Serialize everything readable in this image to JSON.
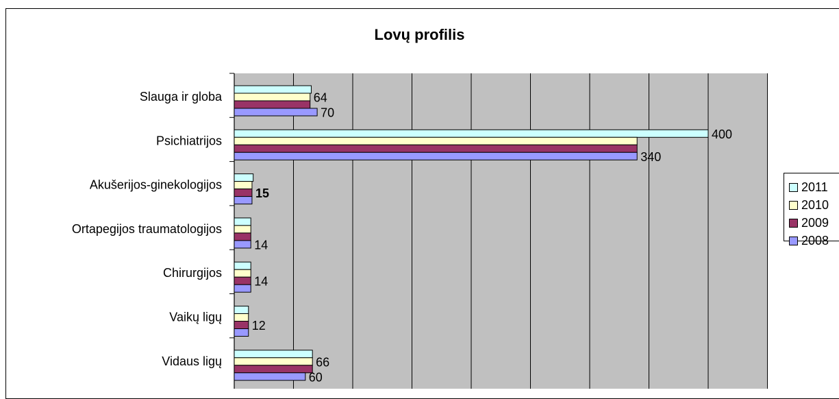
{
  "chart_data": {
    "type": "bar",
    "orientation": "horizontal",
    "title": "Lovų profilis",
    "categories": [
      "Slauga ir globa",
      "Psichiatrijos",
      "Akušerijos-ginekologijos",
      "Ortapegijos traumatologijos",
      "Chirurgijos",
      "Vaikų ligų",
      "Vidaus ligų"
    ],
    "series": [
      {
        "name": "2011",
        "color": "#CCFFFF",
        "values": [
          65,
          400,
          16,
          14,
          14,
          12,
          66
        ]
      },
      {
        "name": "2010",
        "color": "#FFFFCC",
        "values": [
          64,
          340,
          15,
          14,
          14,
          12,
          66
        ]
      },
      {
        "name": "2009",
        "color": "#993366",
        "values": [
          64,
          340,
          15,
          14,
          14,
          12,
          66
        ]
      },
      {
        "name": "2008",
        "color": "#9999FF",
        "values": [
          70,
          340,
          15,
          14,
          14,
          12,
          60
        ]
      }
    ],
    "data_labels": [
      {
        "category": "Slauga ir globa",
        "series": "2010",
        "text": "64"
      },
      {
        "category": "Slauga ir globa",
        "series": "2008",
        "text": "70"
      },
      {
        "category": "Psichiatrijos",
        "series": "2011",
        "text": "400"
      },
      {
        "category": "Psichiatrijos",
        "series": "2008",
        "text": "340"
      },
      {
        "category": "Akušerijos-ginekologijos",
        "series": "2009",
        "text": "15",
        "bold": true
      },
      {
        "category": "Ortapegijos traumatologijos",
        "series": "2008",
        "text": "14"
      },
      {
        "category": "Chirurgijos",
        "series": "2009",
        "text": "14"
      },
      {
        "category": "Vaikų ligų",
        "series": "2009",
        "text": "12"
      },
      {
        "category": "Vidaus ligų",
        "series": "2010",
        "text": "66"
      },
      {
        "category": "Vidaus ligų",
        "series": "2008",
        "text": "60"
      }
    ],
    "xlim": [
      0,
      450
    ],
    "x_grid_step": 50,
    "grid": true,
    "plot_background": "#C0C0C0",
    "legend_position": "right"
  }
}
